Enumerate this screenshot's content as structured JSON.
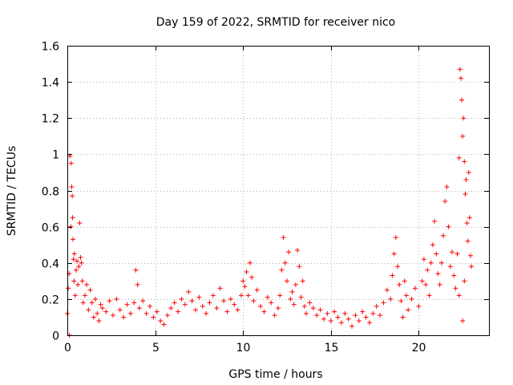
{
  "chart_data": {
    "type": "scatter",
    "title": "Day 159 of 2022, SRMTID for receiver nico",
    "xlabel": "GPS time / hours",
    "ylabel": "SRMTID / TECUs",
    "xlim": [
      0,
      24
    ],
    "ylim": [
      0,
      1.6
    ],
    "xticks": [
      0,
      5,
      10,
      15,
      20
    ],
    "xtick_labels": [
      "0",
      "5",
      "10",
      "15",
      "20"
    ],
    "yticks": [
      0,
      0.2,
      0.4,
      0.6,
      0.8,
      1.0,
      1.2,
      1.4,
      1.6
    ],
    "ytick_labels": [
      "0",
      "0.2",
      "0.4",
      "0.6",
      "0.8",
      "1",
      "1.2",
      "1.4",
      "1.6"
    ],
    "grid": true,
    "marker": "+",
    "series_color": "#ff0000",
    "series": [
      {
        "name": "SRMTID",
        "points": [
          [
            0.0,
            0.12
          ],
          [
            0.05,
            0.26
          ],
          [
            0.1,
            0.34
          ],
          [
            0.12,
            0.0
          ],
          [
            0.15,
            0.99
          ],
          [
            0.2,
            0.6
          ],
          [
            0.22,
            0.95
          ],
          [
            0.25,
            0.82
          ],
          [
            0.28,
            0.77
          ],
          [
            0.3,
            0.65
          ],
          [
            0.32,
            0.53
          ],
          [
            0.35,
            0.42
          ],
          [
            0.38,
            0.3
          ],
          [
            0.4,
            0.45
          ],
          [
            0.45,
            0.22
          ],
          [
            0.5,
            0.36
          ],
          [
            0.55,
            0.41
          ],
          [
            0.6,
            0.28
          ],
          [
            0.65,
            0.38
          ],
          [
            0.7,
            0.62
          ],
          [
            0.75,
            0.43
          ],
          [
            0.8,
            0.4
          ],
          [
            0.85,
            0.3
          ],
          [
            0.9,
            0.18
          ],
          [
            1.0,
            0.22
          ],
          [
            1.1,
            0.28
          ],
          [
            1.2,
            0.14
          ],
          [
            1.3,
            0.25
          ],
          [
            1.4,
            0.18
          ],
          [
            1.5,
            0.1
          ],
          [
            1.6,
            0.2
          ],
          [
            1.7,
            0.12
          ],
          [
            1.8,
            0.08
          ],
          [
            1.9,
            0.17
          ],
          [
            2.0,
            0.15
          ],
          [
            2.2,
            0.13
          ],
          [
            2.4,
            0.19
          ],
          [
            2.6,
            0.11
          ],
          [
            2.8,
            0.2
          ],
          [
            3.0,
            0.14
          ],
          [
            3.2,
            0.1
          ],
          [
            3.4,
            0.17
          ],
          [
            3.6,
            0.12
          ],
          [
            3.8,
            0.18
          ],
          [
            3.9,
            0.36
          ],
          [
            4.0,
            0.28
          ],
          [
            4.1,
            0.15
          ],
          [
            4.3,
            0.19
          ],
          [
            4.5,
            0.12
          ],
          [
            4.7,
            0.16
          ],
          [
            4.9,
            0.1
          ],
          [
            5.1,
            0.13
          ],
          [
            5.3,
            0.08
          ],
          [
            5.5,
            0.06
          ],
          [
            5.7,
            0.11
          ],
          [
            5.9,
            0.15
          ],
          [
            6.1,
            0.18
          ],
          [
            6.3,
            0.13
          ],
          [
            6.5,
            0.2
          ],
          [
            6.7,
            0.17
          ],
          [
            6.9,
            0.24
          ],
          [
            7.1,
            0.19
          ],
          [
            7.3,
            0.14
          ],
          [
            7.5,
            0.21
          ],
          [
            7.7,
            0.16
          ],
          [
            7.9,
            0.12
          ],
          [
            8.1,
            0.18
          ],
          [
            8.3,
            0.22
          ],
          [
            8.5,
            0.15
          ],
          [
            8.7,
            0.26
          ],
          [
            8.9,
            0.19
          ],
          [
            9.1,
            0.13
          ],
          [
            9.3,
            0.2
          ],
          [
            9.5,
            0.17
          ],
          [
            9.7,
            0.14
          ],
          [
            9.9,
            0.22
          ],
          [
            10.0,
            0.3
          ],
          [
            10.1,
            0.27
          ],
          [
            10.2,
            0.35
          ],
          [
            10.3,
            0.22
          ],
          [
            10.4,
            0.4
          ],
          [
            10.5,
            0.32
          ],
          [
            10.6,
            0.19
          ],
          [
            10.8,
            0.25
          ],
          [
            11.0,
            0.16
          ],
          [
            11.2,
            0.13
          ],
          [
            11.4,
            0.21
          ],
          [
            11.6,
            0.18
          ],
          [
            11.8,
            0.11
          ],
          [
            12.0,
            0.15
          ],
          [
            12.1,
            0.22
          ],
          [
            12.2,
            0.36
          ],
          [
            12.3,
            0.54
          ],
          [
            12.4,
            0.4
          ],
          [
            12.5,
            0.3
          ],
          [
            12.6,
            0.46
          ],
          [
            12.7,
            0.2
          ],
          [
            12.8,
            0.24
          ],
          [
            12.9,
            0.17
          ],
          [
            13.0,
            0.28
          ],
          [
            13.1,
            0.47
          ],
          [
            13.2,
            0.38
          ],
          [
            13.3,
            0.21
          ],
          [
            13.4,
            0.3
          ],
          [
            13.5,
            0.16
          ],
          [
            13.6,
            0.12
          ],
          [
            13.8,
            0.18
          ],
          [
            14.0,
            0.15
          ],
          [
            14.2,
            0.11
          ],
          [
            14.4,
            0.14
          ],
          [
            14.6,
            0.09
          ],
          [
            14.8,
            0.12
          ],
          [
            15.0,
            0.08
          ],
          [
            15.2,
            0.13
          ],
          [
            15.4,
            0.1
          ],
          [
            15.6,
            0.07
          ],
          [
            15.8,
            0.12
          ],
          [
            16.0,
            0.09
          ],
          [
            16.2,
            0.05
          ],
          [
            16.4,
            0.11
          ],
          [
            16.6,
            0.08
          ],
          [
            16.8,
            0.13
          ],
          [
            17.0,
            0.1
          ],
          [
            17.2,
            0.07
          ],
          [
            17.4,
            0.12
          ],
          [
            17.6,
            0.16
          ],
          [
            17.8,
            0.11
          ],
          [
            18.0,
            0.18
          ],
          [
            18.2,
            0.25
          ],
          [
            18.4,
            0.2
          ],
          [
            18.5,
            0.33
          ],
          [
            18.6,
            0.45
          ],
          [
            18.7,
            0.54
          ],
          [
            18.8,
            0.38
          ],
          [
            18.9,
            0.28
          ],
          [
            19.0,
            0.19
          ],
          [
            19.1,
            0.1
          ],
          [
            19.2,
            0.3
          ],
          [
            19.3,
            0.22
          ],
          [
            19.4,
            0.14
          ],
          [
            19.6,
            0.2
          ],
          [
            19.8,
            0.26
          ],
          [
            20.0,
            0.16
          ],
          [
            20.2,
            0.3
          ],
          [
            20.3,
            0.42
          ],
          [
            20.4,
            0.28
          ],
          [
            20.5,
            0.36
          ],
          [
            20.6,
            0.22
          ],
          [
            20.7,
            0.4
          ],
          [
            20.8,
            0.5
          ],
          [
            20.9,
            0.63
          ],
          [
            21.0,
            0.45
          ],
          [
            21.1,
            0.34
          ],
          [
            21.2,
            0.28
          ],
          [
            21.3,
            0.4
          ],
          [
            21.4,
            0.55
          ],
          [
            21.5,
            0.74
          ],
          [
            21.6,
            0.82
          ],
          [
            21.7,
            0.6
          ],
          [
            21.8,
            0.38
          ],
          [
            21.9,
            0.46
          ],
          [
            22.0,
            0.33
          ],
          [
            22.1,
            0.26
          ],
          [
            22.2,
            0.45
          ],
          [
            22.3,
            0.98
          ],
          [
            22.35,
            1.47
          ],
          [
            22.4,
            1.42
          ],
          [
            22.45,
            1.3
          ],
          [
            22.5,
            1.1
          ],
          [
            22.55,
            1.2
          ],
          [
            22.6,
            0.96
          ],
          [
            22.65,
            0.78
          ],
          [
            22.7,
            0.86
          ],
          [
            22.75,
            0.62
          ],
          [
            22.8,
            0.52
          ],
          [
            22.85,
            0.9
          ],
          [
            22.9,
            0.65
          ],
          [
            22.95,
            0.44
          ],
          [
            23.0,
            0.38
          ],
          [
            22.5,
            0.08
          ],
          [
            22.3,
            0.22
          ],
          [
            22.6,
            0.3
          ]
        ]
      }
    ]
  }
}
